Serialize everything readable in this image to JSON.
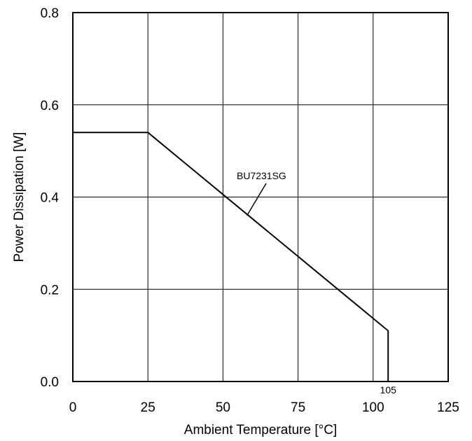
{
  "chart_data": {
    "type": "line",
    "xlabel": "Ambient Temperature [°C]",
    "ylabel": "Power Dissipation [W]",
    "xlim": [
      0,
      125
    ],
    "ylim": [
      0,
      0.8
    ],
    "x_ticks": [
      0,
      25,
      50,
      75,
      100,
      125
    ],
    "x_tick_labels": [
      "0",
      "25",
      "50",
      "75",
      "100",
      "125"
    ],
    "y_ticks": [
      0,
      0.2,
      0.4,
      0.6,
      0.8
    ],
    "y_tick_labels": [
      "0.0",
      "0.2",
      "0.4",
      "0.6",
      "0.8"
    ],
    "grid": true,
    "series": [
      {
        "name": "BU7231SG",
        "x": [
          0,
          25,
          105,
          105
        ],
        "y": [
          0.54,
          0.54,
          0.11,
          0
        ]
      }
    ],
    "annotations": [
      {
        "text": "BU7231SG",
        "points_to": [
          58,
          0.36
        ]
      },
      {
        "text": "105",
        "at": [
          105,
          0
        ]
      }
    ],
    "colors": {
      "line": "#000000",
      "grid": "#000000",
      "background": "#ffffff"
    }
  }
}
